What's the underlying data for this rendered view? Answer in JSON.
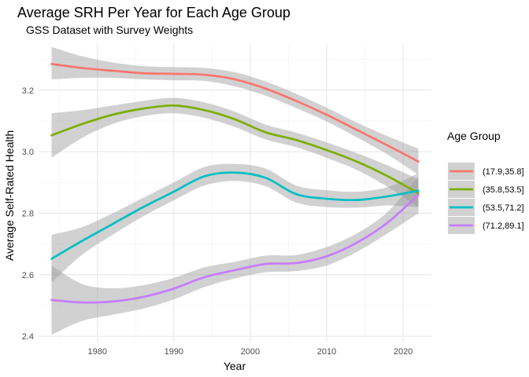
{
  "chart_data": {
    "type": "line",
    "title": "Average SRH Per Year for Each Age Group",
    "subtitle": "GSS Dataset with Survey Weights",
    "xlabel": "Year",
    "ylabel": "Average Self-Rated Health",
    "xlim": [
      1972.3,
      2023.7
    ],
    "ylim": [
      2.38,
      3.35
    ],
    "x_ticks": [
      1980,
      1990,
      2000,
      2010,
      2020
    ],
    "y_ticks": [
      2.4,
      2.6,
      2.8,
      3.0,
      3.2
    ],
    "y_tick_labels": [
      "2.4",
      "2.6",
      "2.8",
      "3.0",
      "3.2"
    ],
    "grid": true,
    "legend": {
      "title": "Age Group",
      "position": "right"
    },
    "series": [
      {
        "name": "(17.9,35.8]",
        "color": "#F8766D",
        "x": [
          1974,
          1978,
          1982,
          1986,
          1990,
          1994,
          1998,
          2002,
          2006,
          2010,
          2014,
          2018,
          2022
        ],
        "y": [
          3.285,
          3.272,
          3.263,
          3.255,
          3.253,
          3.25,
          3.235,
          3.205,
          3.165,
          3.12,
          3.07,
          3.02,
          2.968
        ],
        "ci_lower": [
          3.235,
          3.24,
          3.24,
          3.235,
          3.232,
          3.23,
          3.212,
          3.182,
          3.142,
          3.098,
          3.046,
          2.99,
          2.925
        ],
        "ci_upper": [
          3.34,
          3.31,
          3.29,
          3.278,
          3.275,
          3.272,
          3.258,
          3.228,
          3.188,
          3.143,
          3.094,
          3.05,
          3.01
        ]
      },
      {
        "name": "(35.8,53.5]",
        "color": "#7CAE00",
        "x": [
          1974,
          1978,
          1982,
          1986,
          1990,
          1994,
          1998,
          2002,
          2006,
          2010,
          2014,
          2018,
          2022
        ],
        "y": [
          3.053,
          3.09,
          3.12,
          3.14,
          3.15,
          3.135,
          3.105,
          3.063,
          3.038,
          3.005,
          2.967,
          2.92,
          2.865
        ],
        "ci_lower": [
          2.98,
          3.045,
          3.09,
          3.115,
          3.125,
          3.11,
          3.08,
          3.04,
          3.015,
          2.98,
          2.94,
          2.885,
          2.82
        ],
        "ci_upper": [
          3.125,
          3.135,
          3.15,
          3.165,
          3.175,
          3.16,
          3.13,
          3.088,
          3.062,
          3.03,
          2.995,
          2.955,
          2.91
        ]
      },
      {
        "name": "(53.5,71.2]",
        "color": "#00BFC4",
        "x": [
          1974,
          1978,
          1982,
          1986,
          1990,
          1994,
          1998,
          2002,
          2006,
          2010,
          2014,
          2018,
          2022
        ],
        "y": [
          2.652,
          2.71,
          2.765,
          2.82,
          2.87,
          2.92,
          2.932,
          2.915,
          2.862,
          2.847,
          2.843,
          2.855,
          2.873
        ],
        "ci_lower": [
          2.575,
          2.665,
          2.73,
          2.79,
          2.842,
          2.89,
          2.905,
          2.888,
          2.835,
          2.82,
          2.818,
          2.825,
          2.82
        ],
        "ci_upper": [
          2.73,
          2.755,
          2.8,
          2.85,
          2.9,
          2.95,
          2.96,
          2.945,
          2.89,
          2.875,
          2.87,
          2.885,
          2.93
        ]
      },
      {
        "name": "(71.2,89.1]",
        "color": "#C77CFF",
        "x": [
          1974,
          1978,
          1982,
          1986,
          1990,
          1994,
          1998,
          2002,
          2006,
          2010,
          2014,
          2018,
          2022
        ],
        "y": [
          2.518,
          2.51,
          2.513,
          2.528,
          2.555,
          2.592,
          2.615,
          2.635,
          2.638,
          2.66,
          2.705,
          2.77,
          2.86
        ],
        "ci_lower": [
          2.405,
          2.45,
          2.47,
          2.49,
          2.52,
          2.56,
          2.588,
          2.608,
          2.612,
          2.63,
          2.675,
          2.735,
          2.8
        ],
        "ci_upper": [
          2.63,
          2.57,
          2.556,
          2.566,
          2.59,
          2.624,
          2.642,
          2.662,
          2.664,
          2.69,
          2.735,
          2.805,
          2.92
        ]
      }
    ]
  }
}
